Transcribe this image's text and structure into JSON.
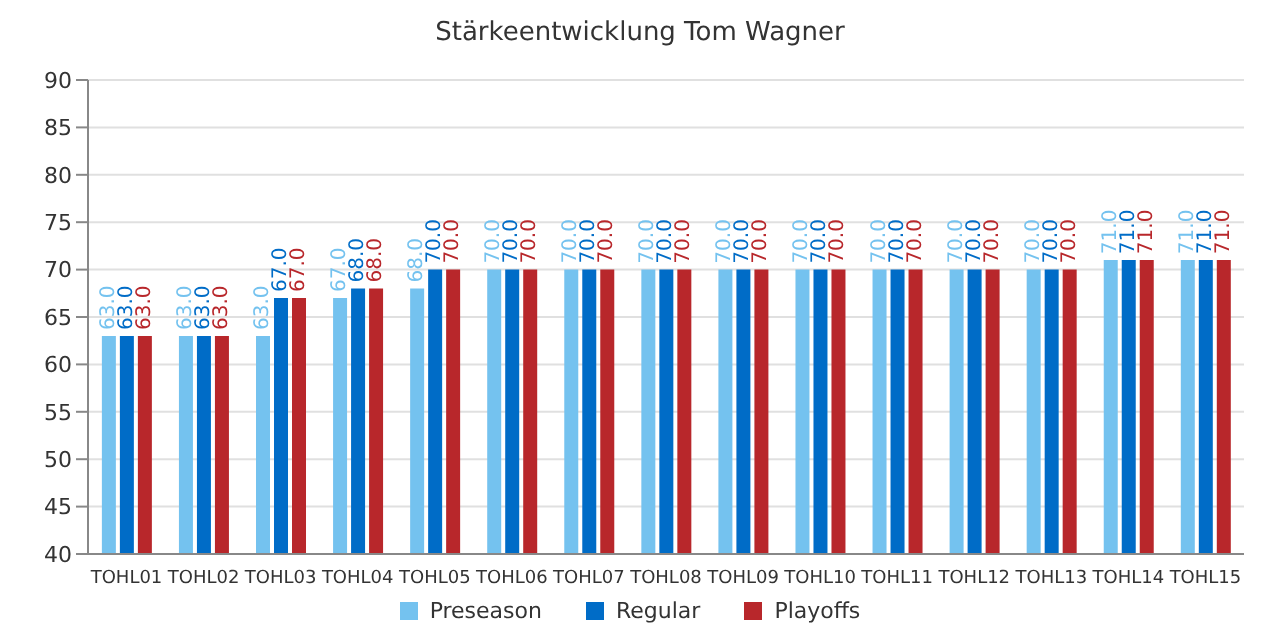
{
  "chart_data": {
    "type": "bar",
    "title": "Stärkeentwicklung Tom Wagner",
    "categories": [
      "TOHL01",
      "TOHL02",
      "TOHL03",
      "TOHL04",
      "TOHL05",
      "TOHL06",
      "TOHL07",
      "TOHL08",
      "TOHL09",
      "TOHL10",
      "TOHL11",
      "TOHL12",
      "TOHL13",
      "TOHL14",
      "TOHL15"
    ],
    "series": [
      {
        "name": "Preseason",
        "color": "#74c2ef",
        "values": [
          63,
          63,
          63,
          67,
          68,
          70,
          70,
          70,
          70,
          70,
          70,
          70,
          70,
          71,
          71
        ],
        "value_labels": [
          "63.0",
          "63.0",
          "63.0",
          "67.0",
          "68.0",
          "70.0",
          "70.0",
          "70.0",
          "70.0",
          "70.0",
          "70.0",
          "70.0",
          "70.0",
          "71.0",
          "71.0"
        ]
      },
      {
        "name": "Regular",
        "color": "#006cc7",
        "values": [
          63,
          63,
          67,
          68,
          70,
          70,
          70,
          70,
          70,
          70,
          70,
          70,
          70,
          71,
          71
        ],
        "value_labels": [
          "63.0",
          "63.0",
          "67.0",
          "68.0",
          "70.0",
          "70.0",
          "70.0",
          "70.0",
          "70.0",
          "70.0",
          "70.0",
          "70.0",
          "70.0",
          "71.0",
          "71.0"
        ]
      },
      {
        "name": "Playoffs",
        "color": "#b8272b",
        "values": [
          63,
          63,
          67,
          68,
          70,
          70,
          70,
          70,
          70,
          70,
          70,
          70,
          70,
          71,
          71
        ],
        "value_labels": [
          "63.0",
          "63.0",
          "67.0",
          "68.0",
          "70.0",
          "70.0",
          "70.0",
          "70.0",
          "70.0",
          "70.0",
          "70.0",
          "70.0",
          "70.0",
          "71.0",
          "71.0"
        ]
      }
    ],
    "ylim": [
      40,
      90
    ],
    "yticks": [
      40,
      45,
      50,
      55,
      60,
      65,
      70,
      75,
      80,
      85,
      90
    ],
    "grid": "y",
    "legend": "bottom"
  }
}
